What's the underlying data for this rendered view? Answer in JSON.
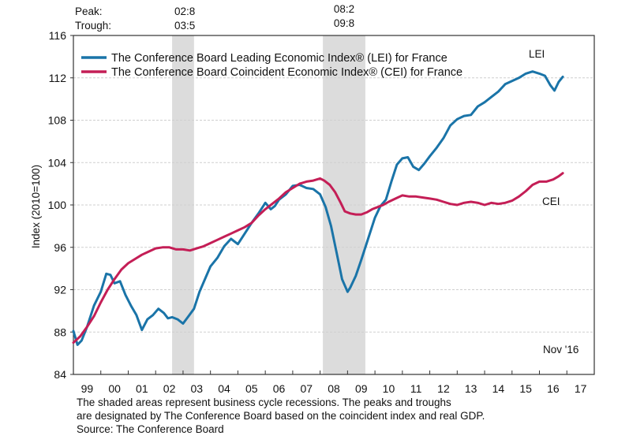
{
  "chart_data": {
    "type": "line",
    "title": "",
    "xlabel": "",
    "ylabel": "Index (2010=100)",
    "ylim": [
      84,
      116
    ],
    "yticks": [
      84,
      88,
      92,
      96,
      100,
      104,
      108,
      112,
      116
    ],
    "xlim": [
      1999.0,
      2018.0
    ],
    "xtick_labels": [
      "99",
      "00",
      "01",
      "02",
      "03",
      "04",
      "05",
      "06",
      "07",
      "08",
      "09",
      "10",
      "11",
      "12",
      "13",
      "14",
      "15",
      "16",
      "17"
    ],
    "grid": true,
    "legend_position": "top-left",
    "recessions": [
      {
        "peak": "02:8",
        "trough": "03:5",
        "start": 2002.6,
        "end": 2003.4
      },
      {
        "peak": "08:2",
        "trough": "09:8",
        "start": 2008.1,
        "end": 2009.65
      }
    ],
    "recession_header": {
      "peak_label": "Peak:",
      "trough_label": "Trough:"
    },
    "series": [
      {
        "name": "The Conference Board Leading Economic Index® (LEI) for France",
        "short_label": "LEI",
        "color": "#1a74a8",
        "x": [
          1999.0,
          1999.15,
          1999.3,
          1999.5,
          1999.75,
          2000.0,
          2000.2,
          2000.35,
          2000.5,
          2000.7,
          2000.9,
          2001.1,
          2001.3,
          2001.5,
          2001.7,
          2001.9,
          2002.1,
          2002.3,
          2002.45,
          2002.6,
          2002.8,
          2003.0,
          2003.2,
          2003.4,
          2003.6,
          2003.8,
          2004.0,
          2004.25,
          2004.5,
          2004.75,
          2005.0,
          2005.25,
          2005.5,
          2005.75,
          2006.0,
          2006.2,
          2006.35,
          2006.5,
          2006.75,
          2007.0,
          2007.25,
          2007.5,
          2007.75,
          2008.0,
          2008.2,
          2008.4,
          2008.6,
          2008.8,
          2009.0,
          2009.1,
          2009.3,
          2009.5,
          2009.75,
          2010.0,
          2010.2,
          2010.4,
          2010.6,
          2010.8,
          2011.0,
          2011.2,
          2011.4,
          2011.6,
          2011.8,
          2012.0,
          2012.25,
          2012.5,
          2012.75,
          2013.0,
          2013.25,
          2013.5,
          2013.75,
          2014.0,
          2014.25,
          2014.5,
          2014.75,
          2015.0,
          2015.25,
          2015.5,
          2015.75,
          2016.0,
          2016.2,
          2016.4,
          2016.55,
          2016.7,
          2016.85
        ],
        "values": [
          88.1,
          86.8,
          87.2,
          88.5,
          90.5,
          91.8,
          93.5,
          93.4,
          92.6,
          92.8,
          91.5,
          90.5,
          89.6,
          88.2,
          89.2,
          89.6,
          90.2,
          89.8,
          89.3,
          89.4,
          89.2,
          88.8,
          89.5,
          90.2,
          91.8,
          93.0,
          94.2,
          95.0,
          96.1,
          96.8,
          96.3,
          97.3,
          98.3,
          99.2,
          100.2,
          99.6,
          99.9,
          100.5,
          101.0,
          101.8,
          101.9,
          101.6,
          101.5,
          101.0,
          99.8,
          98.0,
          95.5,
          93.0,
          91.8,
          92.2,
          93.3,
          94.8,
          96.8,
          98.8,
          99.9,
          100.5,
          102.2,
          103.8,
          104.4,
          104.5,
          103.6,
          103.3,
          103.9,
          104.6,
          105.4,
          106.3,
          107.5,
          108.1,
          108.4,
          108.5,
          109.3,
          109.7,
          110.2,
          110.7,
          111.4,
          111.7,
          112.0,
          112.4,
          112.6,
          112.4,
          112.2,
          111.3,
          110.8,
          111.6,
          112.1
        ]
      },
      {
        "name": "The Conference Board Coincident Economic Index® (CEI) for France",
        "short_label": "CEI",
        "color": "#c41e56",
        "x": [
          1999.0,
          1999.25,
          1999.5,
          1999.75,
          2000.0,
          2000.25,
          2000.5,
          2000.75,
          2001.0,
          2001.25,
          2001.5,
          2001.75,
          2002.0,
          2002.25,
          2002.5,
          2002.75,
          2003.0,
          2003.25,
          2003.5,
          2003.75,
          2004.0,
          2004.25,
          2004.5,
          2004.75,
          2005.0,
          2005.25,
          2005.5,
          2005.75,
          2006.0,
          2006.25,
          2006.5,
          2006.75,
          2007.0,
          2007.25,
          2007.5,
          2007.75,
          2008.0,
          2008.15,
          2008.35,
          2008.55,
          2008.75,
          2008.9,
          2009.1,
          2009.3,
          2009.5,
          2009.7,
          2009.9,
          2010.1,
          2010.3,
          2010.5,
          2010.75,
          2011.0,
          2011.25,
          2011.5,
          2011.75,
          2012.0,
          2012.25,
          2012.5,
          2012.75,
          2013.0,
          2013.25,
          2013.5,
          2013.75,
          2014.0,
          2014.25,
          2014.5,
          2014.75,
          2015.0,
          2015.25,
          2015.5,
          2015.75,
          2016.0,
          2016.25,
          2016.5,
          2016.7,
          2016.85
        ],
        "values": [
          87.0,
          87.6,
          88.5,
          89.5,
          90.8,
          92.0,
          93.0,
          93.9,
          94.5,
          94.9,
          95.3,
          95.6,
          95.9,
          96.0,
          96.0,
          95.8,
          95.8,
          95.7,
          95.9,
          96.1,
          96.4,
          96.7,
          97.0,
          97.3,
          97.6,
          97.9,
          98.3,
          99.0,
          99.6,
          100.1,
          100.6,
          101.2,
          101.6,
          102.0,
          102.2,
          102.3,
          102.5,
          102.3,
          101.9,
          101.2,
          100.2,
          99.4,
          99.2,
          99.1,
          99.1,
          99.3,
          99.6,
          99.8,
          100.0,
          100.3,
          100.6,
          100.9,
          100.8,
          100.8,
          100.7,
          100.6,
          100.5,
          100.3,
          100.1,
          100.0,
          100.2,
          100.3,
          100.2,
          100.0,
          100.2,
          100.1,
          100.2,
          100.4,
          100.8,
          101.3,
          101.9,
          102.2,
          102.2,
          102.4,
          102.7,
          103.0
        ]
      }
    ],
    "annotations": {
      "lei_label": "LEI",
      "cei_label": "CEI",
      "date_label": "Nov '16"
    }
  },
  "footnote": {
    "line1": "The shaded areas represent business cycle recessions. The peaks and troughs",
    "line2": "are designated by The Conference Board based on the coincident index and real GDP.",
    "line3": "Source: The Conference Board"
  }
}
